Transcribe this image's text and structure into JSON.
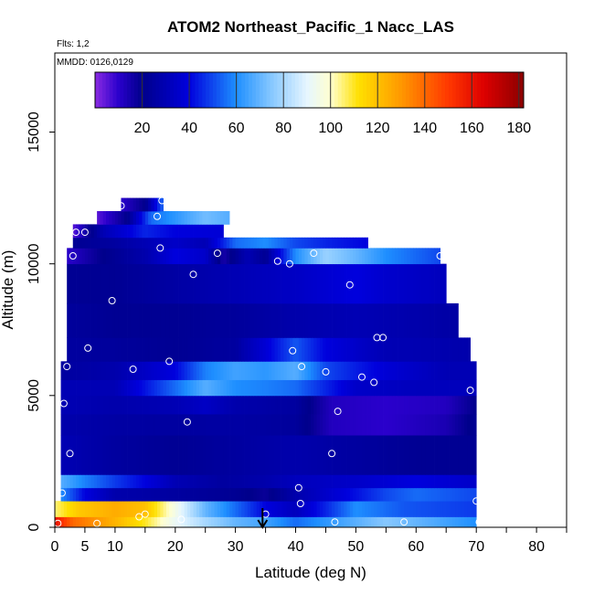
{
  "chart_data": {
    "type": "heatmap",
    "title": "ATOM2 Northeast_Pacific_1 Nacc_LAS",
    "subtitle_flights": "Flts: 1,2",
    "subtitle_dates": "MMDD: 0126,0129",
    "xlabel": "Latitude (deg N)",
    "ylabel": "Altitude (m)",
    "xlim": [
      0,
      85
    ],
    "ylim": [
      0,
      18000
    ],
    "x_ticks": [
      0,
      5,
      10,
      20,
      30,
      40,
      50,
      60,
      70,
      80
    ],
    "x_tick_labels": [
      "0",
      "5",
      "10",
      "20",
      "30",
      "40",
      "50",
      "60",
      "70",
      "80"
    ],
    "y_ticks": [
      0,
      5000,
      10000,
      15000
    ],
    "y_tick_labels": [
      "0",
      "5000",
      "10000",
      "15000"
    ],
    "colorbar": {
      "min": 0,
      "max": 182,
      "ticks": [
        20,
        40,
        60,
        80,
        100,
        120,
        140,
        160,
        180
      ],
      "tick_labels": [
        "20",
        "40",
        "60",
        "80",
        "100",
        "120",
        "140",
        "160",
        "180"
      ],
      "stops": [
        {
          "v": 0,
          "c": "#8a2be2"
        },
        {
          "v": 10,
          "c": "#2a00cc"
        },
        {
          "v": 20,
          "c": "#00008b"
        },
        {
          "v": 40,
          "c": "#0000dd"
        },
        {
          "v": 60,
          "c": "#1e8fff"
        },
        {
          "v": 75,
          "c": "#87c8ff"
        },
        {
          "v": 90,
          "c": "#e6f6ff"
        },
        {
          "v": 100,
          "c": "#ffffd0"
        },
        {
          "v": 112,
          "c": "#ffe000"
        },
        {
          "v": 130,
          "c": "#ff9800"
        },
        {
          "v": 150,
          "c": "#ff3800"
        },
        {
          "v": 165,
          "c": "#dd0000"
        },
        {
          "v": 182,
          "c": "#8b0000"
        }
      ]
    },
    "altitude_bands": [
      {
        "alt": [
          0,
          400
        ],
        "lat": [
          0,
          70
        ],
        "values": [
          [
            0,
            160
          ],
          [
            3,
            140
          ],
          [
            8,
            128
          ],
          [
            15,
            110
          ],
          [
            20,
            92
          ],
          [
            25,
            80
          ],
          [
            30,
            70
          ],
          [
            35,
            65
          ],
          [
            40,
            55
          ],
          [
            45,
            62
          ],
          [
            55,
            75
          ],
          [
            62,
            68
          ],
          [
            70,
            60
          ]
        ]
      },
      {
        "alt": [
          400,
          1000
        ],
        "lat": [
          0,
          70
        ],
        "values": [
          [
            0,
            105
          ],
          [
            4,
            118
          ],
          [
            10,
            125
          ],
          [
            15,
            120
          ],
          [
            20,
            95
          ],
          [
            25,
            70
          ],
          [
            30,
            55
          ],
          [
            35,
            40
          ],
          [
            40,
            32
          ],
          [
            45,
            45
          ],
          [
            50,
            60
          ],
          [
            58,
            52
          ],
          [
            70,
            48
          ]
        ]
      },
      {
        "alt": [
          1000,
          1500
        ],
        "lat": [
          1,
          70
        ],
        "values": [
          [
            1,
            60
          ],
          [
            5,
            40
          ],
          [
            10,
            28
          ],
          [
            20,
            25
          ],
          [
            30,
            22
          ],
          [
            35,
            18
          ],
          [
            40,
            28
          ],
          [
            50,
            42
          ],
          [
            55,
            50
          ],
          [
            60,
            55
          ],
          [
            70,
            50
          ]
        ]
      },
      {
        "alt": [
          1500,
          2000
        ],
        "lat": [
          1,
          70
        ],
        "values": [
          [
            1,
            68
          ],
          [
            5,
            58
          ],
          [
            10,
            48
          ],
          [
            15,
            40
          ],
          [
            20,
            30
          ],
          [
            28,
            25
          ],
          [
            35,
            28
          ],
          [
            40,
            32
          ],
          [
            50,
            35
          ],
          [
            60,
            40
          ],
          [
            70,
            35
          ]
        ]
      },
      {
        "alt": [
          2000,
          3500
        ],
        "lat": [
          1,
          70
        ],
        "values": [
          [
            1,
            30
          ],
          [
            10,
            25
          ],
          [
            20,
            22
          ],
          [
            30,
            25
          ],
          [
            40,
            28
          ],
          [
            50,
            25
          ],
          [
            60,
            22
          ],
          [
            70,
            22
          ]
        ]
      },
      {
        "alt": [
          3500,
          4300
        ],
        "lat": [
          1,
          70
        ],
        "values": [
          [
            1,
            28
          ],
          [
            10,
            26
          ],
          [
            20,
            25
          ],
          [
            30,
            26
          ],
          [
            40,
            24
          ],
          [
            46,
            12
          ],
          [
            55,
            10
          ],
          [
            65,
            14
          ],
          [
            70,
            22
          ]
        ]
      },
      {
        "alt": [
          4300,
          5000
        ],
        "lat": [
          1,
          70
        ],
        "values": [
          [
            1,
            30
          ],
          [
            10,
            28
          ],
          [
            20,
            30
          ],
          [
            25,
            34
          ],
          [
            30,
            28
          ],
          [
            40,
            25
          ],
          [
            46,
            12
          ],
          [
            55,
            10
          ],
          [
            65,
            12
          ],
          [
            70,
            20
          ]
        ]
      },
      {
        "alt": [
          5000,
          5600
        ],
        "lat": [
          1,
          70
        ],
        "values": [
          [
            1,
            30
          ],
          [
            10,
            30
          ],
          [
            20,
            55
          ],
          [
            25,
            68
          ],
          [
            30,
            60
          ],
          [
            35,
            58
          ],
          [
            40,
            55
          ],
          [
            45,
            45
          ],
          [
            50,
            35
          ],
          [
            60,
            32
          ],
          [
            70,
            32
          ]
        ]
      },
      {
        "alt": [
          5600,
          6300
        ],
        "lat": [
          1,
          70
        ],
        "values": [
          [
            1,
            25
          ],
          [
            10,
            28
          ],
          [
            20,
            40
          ],
          [
            25,
            58
          ],
          [
            30,
            65
          ],
          [
            35,
            62
          ],
          [
            40,
            68
          ],
          [
            45,
            50
          ],
          [
            55,
            38
          ],
          [
            65,
            30
          ],
          [
            70,
            30
          ]
        ]
      },
      {
        "alt": [
          6300,
          7200
        ],
        "lat": [
          2,
          69
        ],
        "values": [
          [
            2,
            25
          ],
          [
            10,
            24
          ],
          [
            20,
            22
          ],
          [
            30,
            25
          ],
          [
            35,
            38
          ],
          [
            40,
            52
          ],
          [
            45,
            40
          ],
          [
            55,
            30
          ],
          [
            69,
            28
          ]
        ]
      },
      {
        "alt": [
          7200,
          8500
        ],
        "lat": [
          2,
          67
        ],
        "values": [
          [
            2,
            24
          ],
          [
            10,
            22
          ],
          [
            20,
            22
          ],
          [
            30,
            24
          ],
          [
            40,
            28
          ],
          [
            50,
            30
          ],
          [
            60,
            28
          ],
          [
            67,
            26
          ]
        ]
      },
      {
        "alt": [
          8500,
          10000
        ],
        "lat": [
          2,
          65
        ],
        "values": [
          [
            2,
            22
          ],
          [
            10,
            22
          ],
          [
            20,
            26
          ],
          [
            30,
            30
          ],
          [
            40,
            34
          ],
          [
            50,
            40
          ],
          [
            55,
            36
          ],
          [
            65,
            32
          ]
        ]
      },
      {
        "alt": [
          10000,
          10600
        ],
        "lat": [
          2,
          64
        ],
        "values": [
          [
            2,
            10
          ],
          [
            8,
            20
          ],
          [
            15,
            28
          ],
          [
            20,
            40
          ],
          [
            25,
            35
          ],
          [
            28,
            15
          ],
          [
            32,
            30
          ],
          [
            35,
            22
          ],
          [
            40,
            60
          ],
          [
            45,
            78
          ],
          [
            50,
            70
          ],
          [
            55,
            60
          ],
          [
            64,
            50
          ]
        ]
      },
      {
        "alt": [
          10600,
          11000
        ],
        "lat": [
          3,
          52
        ],
        "values": [
          [
            3,
            22
          ],
          [
            10,
            25
          ],
          [
            20,
            35
          ],
          [
            25,
            30
          ],
          [
            30,
            55
          ],
          [
            35,
            60
          ],
          [
            40,
            50
          ],
          [
            45,
            45
          ],
          [
            52,
            40
          ]
        ]
      },
      {
        "alt": [
          11000,
          11500
        ],
        "lat": [
          3,
          28
        ],
        "values": [
          [
            3,
            5
          ],
          [
            8,
            30
          ],
          [
            15,
            45
          ],
          [
            20,
            40
          ],
          [
            28,
            38
          ]
        ]
      },
      {
        "alt": [
          11500,
          12000
        ],
        "lat": [
          7,
          29
        ],
        "values": [
          [
            7,
            5
          ],
          [
            12,
            20
          ],
          [
            16,
            55
          ],
          [
            20,
            62
          ],
          [
            25,
            72
          ],
          [
            29,
            68
          ]
        ]
      },
      {
        "alt": [
          12000,
          12500
        ],
        "lat": [
          11,
          18
        ],
        "values": [
          [
            11,
            10
          ],
          [
            13,
            15
          ],
          [
            15,
            20
          ],
          [
            18,
            55
          ]
        ]
      }
    ],
    "observations": [
      [
        0.5,
        150
      ],
      [
        1.2,
        1300
      ],
      [
        1.5,
        4700
      ],
      [
        2,
        6100
      ],
      [
        2.5,
        2800
      ],
      [
        3,
        10300
      ],
      [
        3.5,
        11200
      ],
      [
        5,
        11200
      ],
      [
        5.5,
        6800
      ],
      [
        7,
        150
      ],
      [
        9.5,
        8600
      ],
      [
        11,
        12200
      ],
      [
        13,
        6000
      ],
      [
        14,
        400
      ],
      [
        15,
        500
      ],
      [
        17,
        11800
      ],
      [
        17.5,
        10600
      ],
      [
        17.8,
        12400
      ],
      [
        19,
        6300
      ],
      [
        21,
        300
      ],
      [
        22,
        4000
      ],
      [
        23,
        9600
      ],
      [
        27,
        10400
      ],
      [
        35,
        500
      ],
      [
        37,
        10100
      ],
      [
        39,
        10000
      ],
      [
        39.5,
        6700
      ],
      [
        40.5,
        1500
      ],
      [
        40.8,
        900
      ],
      [
        41,
        6100
      ],
      [
        43,
        10400
      ],
      [
        45,
        5900
      ],
      [
        46,
        2800
      ],
      [
        46.5,
        200
      ],
      [
        47,
        4400
      ],
      [
        49,
        9200
      ],
      [
        51,
        5700
      ],
      [
        53,
        5500
      ],
      [
        53.5,
        7200
      ],
      [
        54.5,
        7200
      ],
      [
        58,
        200
      ],
      [
        64,
        10300
      ],
      [
        69,
        5200
      ],
      [
        70,
        1000
      ],
      [
        70.5,
        200
      ]
    ],
    "arrow_marker": {
      "lat": 34.5,
      "label": ""
    }
  }
}
